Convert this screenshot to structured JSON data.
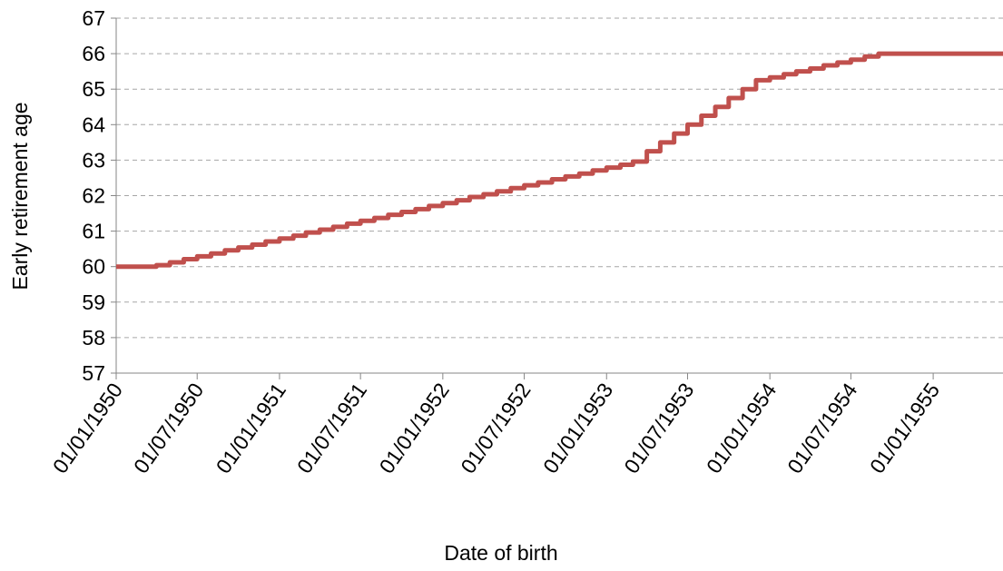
{
  "chart_data": {
    "type": "line",
    "title": "",
    "xlabel": "Date of birth",
    "ylabel": "Early retirement age",
    "ylim": [
      57,
      67
    ],
    "xlim": [
      "1950-01-01",
      "1955-06-06"
    ],
    "y_ticks": [
      57,
      58,
      59,
      60,
      61,
      62,
      63,
      64,
      65,
      66,
      67
    ],
    "x_ticks": [
      "1950-01-01",
      "1950-07-01",
      "1951-01-01",
      "1951-07-01",
      "1952-01-01",
      "1952-07-01",
      "1953-01-01",
      "1953-07-01",
      "1954-01-01",
      "1954-07-01",
      "1955-01-01"
    ],
    "x_tick_labels": [
      "01/01/1950",
      "01/07/1950",
      "01/01/1951",
      "01/07/1951",
      "01/01/1952",
      "01/07/1952",
      "01/01/1953",
      "01/07/1953",
      "01/01/1954",
      "01/07/1954",
      "01/01/1955"
    ],
    "grid": true,
    "line_color": "#c0504d",
    "series": [
      {
        "name": "",
        "step": "post",
        "x": [
          "1950-01-01",
          "1950-04-01",
          "1950-05-01",
          "1950-06-01",
          "1950-07-01",
          "1950-08-01",
          "1950-09-01",
          "1950-10-01",
          "1950-11-01",
          "1950-12-01",
          "1951-01-01",
          "1951-02-01",
          "1951-03-01",
          "1951-04-01",
          "1951-05-01",
          "1951-06-01",
          "1951-07-01",
          "1951-08-01",
          "1951-09-01",
          "1951-10-01",
          "1951-11-01",
          "1951-12-01",
          "1952-01-01",
          "1952-02-01",
          "1952-03-01",
          "1952-04-01",
          "1952-05-01",
          "1952-06-01",
          "1952-07-01",
          "1952-08-01",
          "1952-09-01",
          "1952-10-01",
          "1952-11-01",
          "1952-12-01",
          "1953-01-01",
          "1953-02-01",
          "1953-03-01",
          "1953-04-01",
          "1953-05-01",
          "1953-06-01",
          "1953-07-01",
          "1953-08-01",
          "1953-09-01",
          "1953-10-01",
          "1953-11-01",
          "1953-12-01",
          "1954-01-01",
          "1954-02-01",
          "1954-03-01",
          "1954-04-01",
          "1954-05-01",
          "1954-06-01",
          "1954-07-01",
          "1954-08-01",
          "1954-09-01",
          "1954-10-01",
          "1954-11-01",
          "1955-06-06"
        ],
        "y": [
          60.0,
          60.04,
          60.12,
          60.21,
          60.29,
          60.37,
          60.46,
          60.54,
          60.62,
          60.71,
          60.79,
          60.87,
          60.96,
          61.04,
          61.12,
          61.21,
          61.29,
          61.37,
          61.46,
          61.54,
          61.62,
          61.71,
          61.79,
          61.87,
          61.96,
          62.04,
          62.12,
          62.21,
          62.29,
          62.37,
          62.46,
          62.54,
          62.62,
          62.71,
          62.79,
          62.87,
          62.96,
          63.25,
          63.5,
          63.75,
          64.0,
          64.25,
          64.5,
          64.75,
          65.0,
          65.25,
          65.33,
          65.42,
          65.5,
          65.58,
          65.67,
          65.75,
          65.83,
          65.92,
          66.0,
          66.0,
          66.0,
          66.0
        ]
      }
    ]
  }
}
